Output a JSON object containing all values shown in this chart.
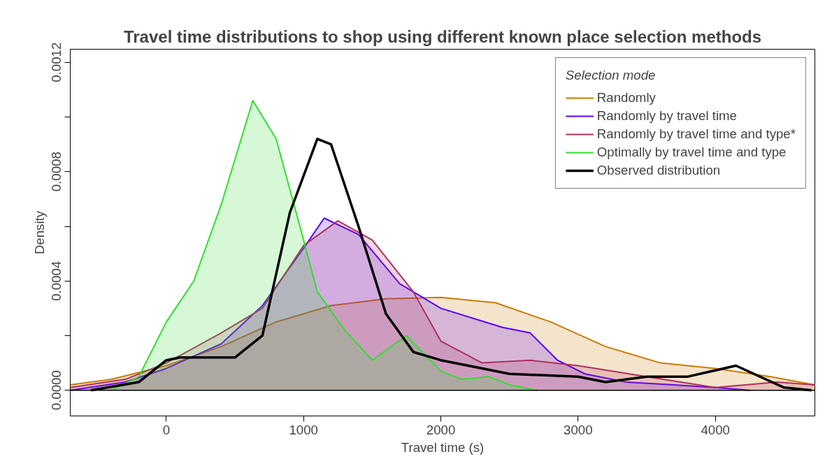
{
  "chart_data": {
    "type": "area",
    "title": "Travel time distributions to shop using different known place selection methods",
    "xlabel": "Travel time (s)",
    "ylabel": "Density",
    "legend_title": "Selection mode",
    "legend": "top right",
    "grid": false,
    "xlim": [
      -700,
      4725
    ],
    "ylim": [
      -9.4e-05,
      0.001248
    ],
    "xticks": [
      0,
      1000,
      2000,
      3000,
      4000
    ],
    "yticks": [
      {
        "value": 0,
        "label": "0.0000"
      },
      {
        "value": 0.0002,
        "label": null
      },
      {
        "value": 0.0004,
        "label": "0.0004"
      },
      {
        "value": 0.0006,
        "label": null
      },
      {
        "value": 0.0008,
        "label": "0.0008"
      },
      {
        "value": 0.001,
        "label": null
      },
      {
        "value": 0.0012,
        "label": "0.0012"
      }
    ],
    "ref_lines": [
      {
        "axis": "y",
        "value": 0,
        "color": "#000000"
      }
    ],
    "series": [
      {
        "name": "Randomly",
        "color": "#cc7a00",
        "x": [
          -700,
          -400,
          0,
          400,
          800,
          1200,
          1600,
          2000,
          2400,
          2800,
          3200,
          3600,
          4000,
          4400,
          4725
        ],
        "values": [
          2e-05,
          4e-05,
          9e-05,
          0.00016,
          0.00025,
          0.00031,
          0.000335,
          0.00034,
          0.00032,
          0.00025,
          0.00016,
          0.0001,
          8e-05,
          5e-05,
          2e-05
        ]
      },
      {
        "name": "Randomly by travel time",
        "color": "#5500ff",
        "x": [
          -700,
          -300,
          0,
          400,
          700,
          1000,
          1150,
          1400,
          1700,
          2000,
          2450,
          2650,
          2850,
          3050,
          3350,
          3700,
          4000,
          4250
        ],
        "values": [
          0,
          3e-05,
          8e-05,
          0.00017,
          0.00031,
          0.00052,
          0.00063,
          0.00057,
          0.00039,
          0.0003,
          0.00023,
          0.00021,
          0.00011,
          6e-05,
          3e-05,
          2e-05,
          1e-05,
          0
        ]
      },
      {
        "name": "Randomly by travel time and type*",
        "color": "#b03060",
        "x": [
          -700,
          -300,
          0,
          400,
          700,
          1000,
          1250,
          1500,
          1800,
          2000,
          2300,
          2650,
          3000,
          3500,
          4000,
          4450,
          4725
        ],
        "values": [
          1e-05,
          4e-05,
          0.0001,
          0.00021,
          0.0003,
          0.00053,
          0.00062,
          0.00055,
          0.00036,
          0.00018,
          0.0001,
          0.00011,
          9e-05,
          5e-05,
          1e-05,
          3e-05,
          2e-05
        ]
      },
      {
        "name": "Optimally by travel time and type",
        "color": "#33dd33",
        "x": [
          -400,
          -200,
          0,
          200,
          400,
          630,
          800,
          1000,
          1100,
          1300,
          1500,
          1750,
          2000,
          2150,
          2350,
          2500,
          2700
        ],
        "values": [
          0,
          5e-05,
          0.00025,
          0.0004,
          0.00068,
          0.00106,
          0.00092,
          0.00055,
          0.00036,
          0.00022,
          0.00011,
          0.0002,
          7e-05,
          4e-05,
          5e-05,
          2e-05,
          0
        ]
      },
      {
        "name": "Observed distribution",
        "type": "line",
        "color": "#000000",
        "x": [
          -550,
          -200,
          0,
          100,
          500,
          700,
          900,
          1100,
          1200,
          1400,
          1600,
          1800,
          2000,
          2200,
          2500,
          3000,
          3200,
          3500,
          3800,
          4150,
          4500,
          4700
        ],
        "values": [
          0,
          3e-05,
          0.00011,
          0.00012,
          0.00012,
          0.0002,
          0.00065,
          0.00092,
          0.0009,
          0.0006,
          0.00028,
          0.00014,
          0.00011,
          9e-05,
          6e-05,
          5e-05,
          3e-05,
          5e-05,
          5e-05,
          9e-05,
          1e-05,
          0
        ]
      }
    ]
  }
}
